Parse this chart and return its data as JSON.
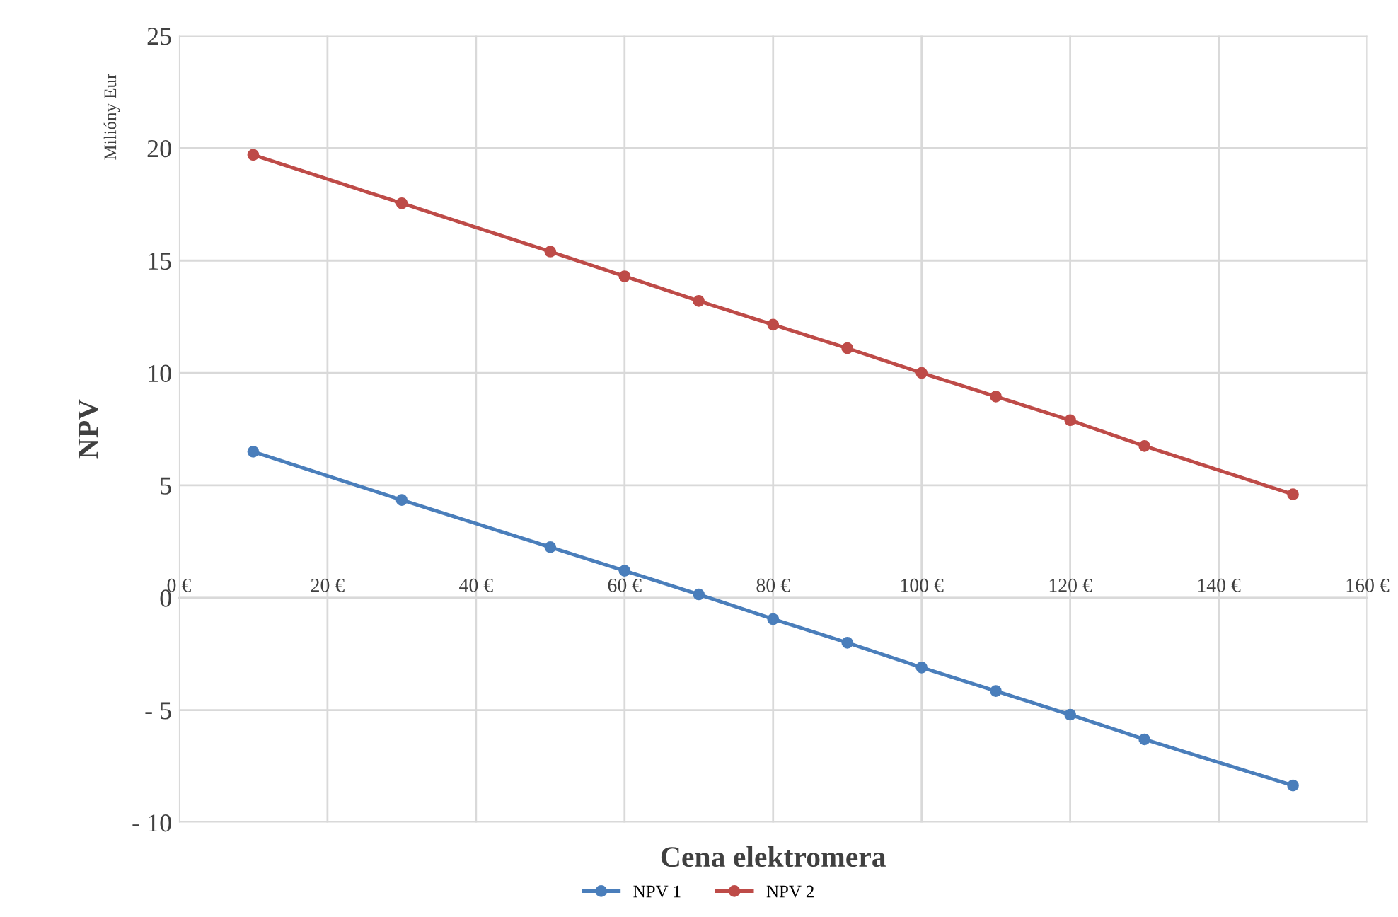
{
  "chart_data": {
    "type": "line",
    "xlabel": "Cena elektromera",
    "ylabel": "NPV",
    "annotations": [
      "Milióny Eur"
    ],
    "x": [
      10,
      30,
      50,
      60,
      70,
      80,
      90,
      100,
      110,
      120,
      130,
      150
    ],
    "series": [
      {
        "name": "NPV 1",
        "color": "#4a7ebb",
        "values": [
          6.5,
          4.35,
          2.25,
          1.2,
          0.15,
          -0.95,
          -2.0,
          -3.1,
          -4.15,
          -5.2,
          -6.3,
          -8.35
        ]
      },
      {
        "name": "NPV 2",
        "color": "#be4b48",
        "values": [
          19.7,
          17.55,
          15.4,
          14.3,
          13.2,
          12.15,
          11.1,
          10.0,
          8.95,
          7.9,
          6.75,
          4.6
        ]
      }
    ],
    "xlim": [
      0,
      160
    ],
    "ylim": [
      -10,
      25
    ],
    "xticks": [
      {
        "value": 0,
        "label": "0 €"
      },
      {
        "value": 20,
        "label": "20 €"
      },
      {
        "value": 40,
        "label": "40 €"
      },
      {
        "value": 60,
        "label": "60 €"
      },
      {
        "value": 80,
        "label": "80 €"
      },
      {
        "value": 100,
        "label": "100 €"
      },
      {
        "value": 120,
        "label": "120 €"
      },
      {
        "value": 140,
        "label": "140 €"
      },
      {
        "value": 160,
        "label": "160 €"
      }
    ],
    "yticks": [
      {
        "value": -10,
        "label": "- 10"
      },
      {
        "value": -5,
        "label": "- 5"
      },
      0,
      5,
      10,
      15,
      20,
      25
    ],
    "grid": true,
    "legend": "bottom",
    "marker": "circle",
    "line_style": "solid"
  }
}
